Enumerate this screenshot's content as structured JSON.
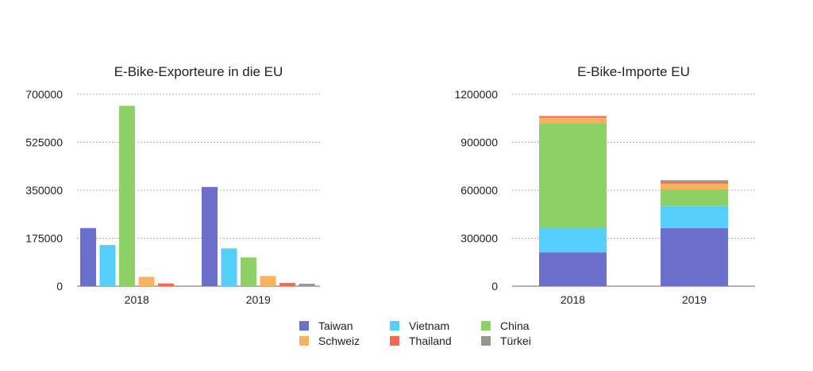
{
  "legend": [
    {
      "name": "Taiwan",
      "color": "#6c70cc"
    },
    {
      "name": "Vietnam",
      "color": "#55cffa"
    },
    {
      "name": "China",
      "color": "#8dd066"
    },
    {
      "name": "Schweiz",
      "color": "#fbb25e"
    },
    {
      "name": "Thailand",
      "color": "#f56a4c"
    },
    {
      "name": "Türkei",
      "color": "#999590"
    }
  ],
  "chart_data": [
    {
      "type": "bar",
      "title": "E-Bike-Exporteure in die EU",
      "categories": [
        "2018",
        "2019"
      ],
      "ylim": [
        0,
        700000
      ],
      "yticks": [
        "0",
        "175000",
        "350000",
        "525000",
        "700000"
      ],
      "grid": true,
      "legend_position": "bottom",
      "series": [
        {
          "name": "Taiwan",
          "color": "#6c70cc",
          "values": [
            212000,
            362000
          ]
        },
        {
          "name": "Vietnam",
          "color": "#55cffa",
          "values": [
            150000,
            138000
          ]
        },
        {
          "name": "China",
          "color": "#8dd066",
          "values": [
            658000,
            105000
          ]
        },
        {
          "name": "Schweiz",
          "color": "#fbb25e",
          "values": [
            34000,
            37000
          ]
        },
        {
          "name": "Thailand",
          "color": "#f56a4c",
          "values": [
            10000,
            12000
          ]
        },
        {
          "name": "Türkei",
          "color": "#999590",
          "values": [
            0,
            9000
          ]
        }
      ]
    },
    {
      "type": "stacked-bar",
      "title": "E-Bike-Importe EU",
      "categories": [
        "2018",
        "2019"
      ],
      "ylim": [
        0,
        1200000
      ],
      "yticks": [
        "0",
        "300000",
        "600000",
        "900000",
        "1200000"
      ],
      "grid": true,
      "legend_position": "bottom",
      "series": [
        {
          "name": "Taiwan",
          "color": "#6c70cc",
          "values": [
            212000,
            362000
          ]
        },
        {
          "name": "Vietnam",
          "color": "#55cffa",
          "values": [
            150000,
            138000
          ]
        },
        {
          "name": "China",
          "color": "#8dd066",
          "values": [
            658000,
            105000
          ]
        },
        {
          "name": "Schweiz",
          "color": "#fbb25e",
          "values": [
            34000,
            37000
          ]
        },
        {
          "name": "Thailand",
          "color": "#f56a4c",
          "values": [
            10000,
            12000
          ]
        },
        {
          "name": "Türkei",
          "color": "#999590",
          "values": [
            0,
            9000
          ]
        }
      ]
    }
  ]
}
